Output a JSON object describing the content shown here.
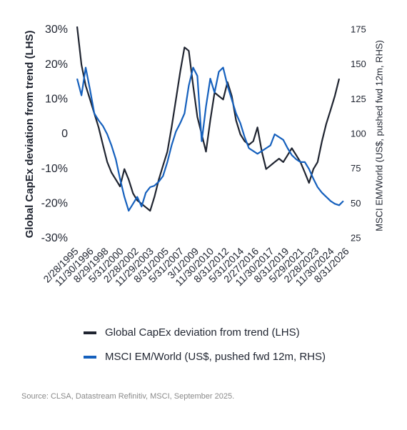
{
  "chart_data": {
    "type": "line",
    "ylabel": "Global CapEx deviation from trend (LHS)",
    "y2label": "MSCI EM/World (US$, pushed fwd 12m, RHS)",
    "source": "Source: CLSA, Datastream Refinitiv, MSCI, September 2025.",
    "grid": false,
    "x": [
      "2/28/1995",
      "8/31/1995",
      "2/28/1996",
      "8/31/1996",
      "2/28/1997",
      "8/31/1997",
      "2/28/1998",
      "8/31/1998",
      "2/28/1999",
      "8/31/1999",
      "2/28/2000",
      "8/31/2000",
      "2/28/2001",
      "8/31/2001",
      "2/28/2002",
      "8/31/2002",
      "2/28/2003",
      "8/31/2003",
      "2/28/2004",
      "8/31/2004",
      "2/28/2005",
      "8/31/2005",
      "2/28/2006",
      "8/31/2006",
      "2/28/2007",
      "8/31/2007",
      "2/28/2008",
      "8/31/2008",
      "2/28/2009",
      "8/31/2009",
      "2/28/2010",
      "8/31/2010",
      "2/28/2011",
      "8/31/2011",
      "2/28/2012",
      "8/31/2012",
      "2/28/2013",
      "8/31/2013",
      "2/28/2014",
      "8/31/2014",
      "2/28/2015",
      "8/31/2015",
      "2/28/2016",
      "8/31/2016",
      "2/28/2017",
      "8/31/2017",
      "2/28/2018",
      "8/31/2018",
      "2/28/2019",
      "8/31/2019",
      "2/28/2020",
      "8/31/2020",
      "2/28/2021",
      "8/31/2021",
      "2/28/2022",
      "8/31/2022",
      "2/28/2023",
      "8/31/2023",
      "2/28/2024",
      "8/31/2024",
      "2/28/2025",
      "8/31/2025",
      "2/28/2026",
      "8/31/2026"
    ],
    "xlim": [
      "2/28/1995",
      "8/31/2026"
    ],
    "xticks": [
      "2/28/1995",
      "11/30/1996",
      "8/29/1998",
      "5/31/2000",
      "2/28/2002",
      "11/29/2003",
      "8/31/2005",
      "5/31/2007",
      "3/1/2009",
      "11/30/2010",
      "8/31/2012",
      "5/31/2014",
      "2/27/2016",
      "11/30/2017",
      "8/31/2019",
      "5/29/2021",
      "2/28/2023",
      "11/30/2024",
      "8/31/2026"
    ],
    "ylim": [
      -30,
      30
    ],
    "yticks": [
      {
        "value": 30,
        "label": "30%"
      },
      {
        "value": 20,
        "label": "20%"
      },
      {
        "value": 10,
        "label": "10%"
      },
      0,
      {
        "value": -10,
        "label": "-10%"
      },
      {
        "value": -20,
        "label": "-20%"
      },
      {
        "value": -30,
        "label": "-30%"
      }
    ],
    "y2lim": [
      25,
      175
    ],
    "y2ticks": [
      175,
      150,
      125,
      100,
      75,
      50,
      25
    ],
    "series": [
      {
        "name": "Global CapEx deviation from trend (LHS)",
        "color": "#1f2430",
        "values": [
          31,
          20,
          14,
          10,
          6,
          2,
          -3,
          -8,
          -11,
          -13,
          -15,
          -10,
          -13,
          -17,
          -19,
          -20,
          -21,
          -22,
          -18,
          -13,
          -9,
          -5,
          2,
          10,
          18,
          25,
          24,
          14,
          5,
          0,
          -5,
          4,
          12,
          11,
          10,
          15,
          11,
          4,
          0,
          -2,
          -3,
          -2,
          2,
          -5,
          -10,
          -9,
          -8,
          -7,
          -8,
          -6,
          -4,
          -6,
          -8,
          -11,
          -14,
          -10,
          -8,
          -2,
          3,
          7,
          11,
          16,
          null,
          null
        ]
      },
      {
        "name": "MSCI EM/World (US$, pushed fwd 12m, RHS)",
        "color": "#1560bd",
        "axis": "y2",
        "values": [
          140,
          128,
          148,
          132,
          115,
          110,
          106,
          100,
          92,
          82,
          68,
          55,
          45,
          50,
          55,
          48,
          58,
          62,
          63,
          66,
          70,
          80,
          92,
          102,
          108,
          115,
          135,
          148,
          142,
          95,
          120,
          140,
          130,
          145,
          148,
          135,
          125,
          115,
          108,
          98,
          90,
          88,
          86,
          88,
          90,
          92,
          100,
          98,
          96,
          90,
          85,
          82,
          80,
          80,
          75,
          68,
          62,
          58,
          55,
          52,
          50,
          49,
          52,
          null
        ]
      }
    ]
  }
}
